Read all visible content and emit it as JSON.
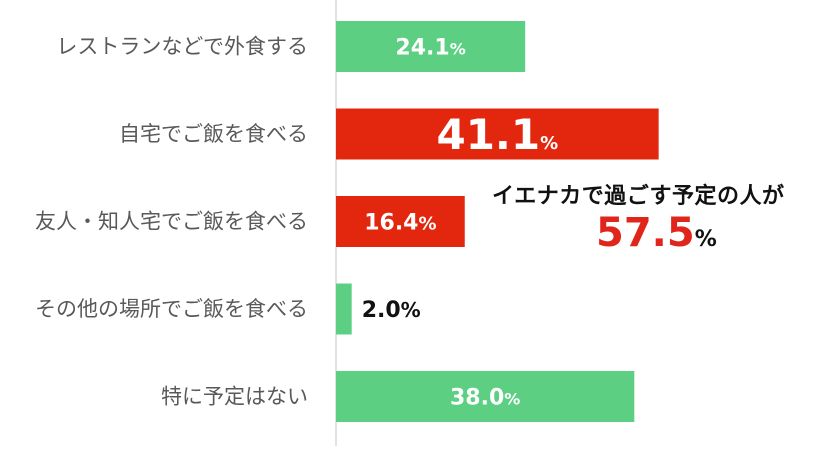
{
  "chart_data": {
    "type": "bar",
    "orientation": "horizontal",
    "categories": [
      "レストランなどで外食する",
      "自宅でご飯を食べる",
      "友人・知人宅でご飯を食べる",
      "その他の場所でご飯を食べる",
      "特に予定はない"
    ],
    "values": [
      24.1,
      41.1,
      16.4,
      2.0,
      38.0
    ],
    "value_labels": [
      "24.1",
      "41.1",
      "16.4",
      "2.0",
      "38.0"
    ],
    "unit": "%",
    "bar_colors": [
      "#5ccf82",
      "#e3260e",
      "#e3260e",
      "#5ccf82",
      "#5ccf82"
    ],
    "label_colors": [
      "#ffffff",
      "#ffffff",
      "#ffffff",
      "#111111",
      "#ffffff"
    ],
    "xlim": [
      0,
      60
    ],
    "grid": false,
    "legend": "none"
  },
  "annotation": {
    "caption": "イエナカで過ごす予定の人が",
    "value": "57.5",
    "unit": "%",
    "value_color": "#e0261b"
  }
}
